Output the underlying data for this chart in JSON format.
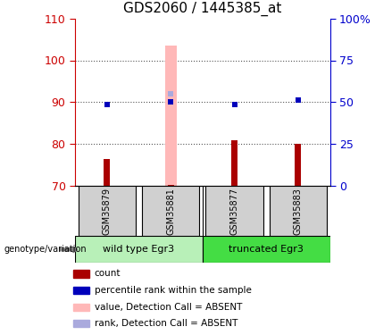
{
  "title": "GDS2060 / 1445385_at",
  "samples": [
    "GSM35879",
    "GSM35881",
    "GSM35877",
    "GSM35883"
  ],
  "x_positions": [
    0,
    1,
    2,
    3
  ],
  "red_bar_values": [
    76.5,
    70.2,
    81.0,
    80.0
  ],
  "blue_square_values": [
    89.5,
    90.0,
    89.5,
    90.5
  ],
  "pink_bar_values": [
    null,
    103.5,
    null,
    null
  ],
  "lightblue_square_values": [
    null,
    92.0,
    null,
    null
  ],
  "ylim": [
    70,
    110
  ],
  "yticks_left": [
    70,
    80,
    90,
    100,
    110
  ],
  "yticks_right": [
    0,
    25,
    50,
    75,
    100
  ],
  "yticks_right_labels": [
    "0",
    "25",
    "50",
    "75",
    "100%"
  ],
  "y2lim": [
    0,
    100
  ],
  "group1_label": "wild type Egr3",
  "group2_label": "truncated Egr3",
  "group1_color": "#b8f0b8",
  "group2_color": "#44dd44",
  "sample_box_color": "#d0d0d0",
  "red_bar_color": "#aa0000",
  "blue_square_color": "#0000bb",
  "pink_bar_color": "#ffb8b8",
  "lightblue_square_color": "#aaaadd",
  "left_axis_color": "#cc0000",
  "right_axis_color": "#0000cc",
  "grid_color": "#555555",
  "legend_items": [
    {
      "color": "#aa0000",
      "label": "count"
    },
    {
      "color": "#0000bb",
      "label": "percentile rank within the sample"
    },
    {
      "color": "#ffb8b8",
      "label": "value, Detection Call = ABSENT"
    },
    {
      "color": "#aaaadd",
      "label": "rank, Detection Call = ABSENT"
    }
  ]
}
